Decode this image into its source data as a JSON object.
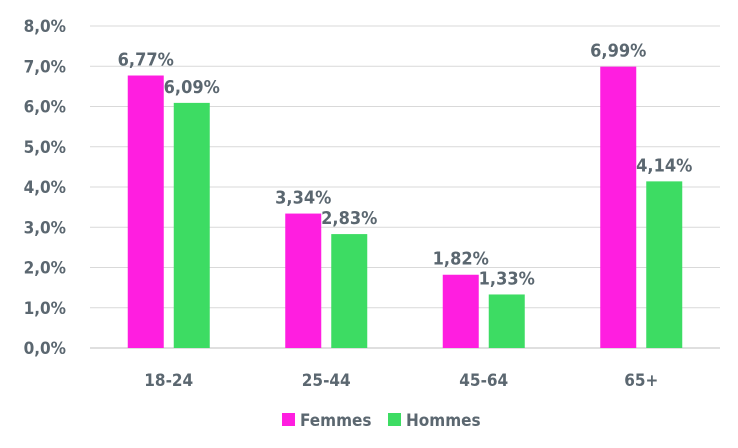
{
  "chart_data": {
    "type": "bar",
    "categories": [
      "18-24",
      "25-44",
      "45-64",
      "65+"
    ],
    "series": [
      {
        "name": "Femmes",
        "values": [
          6.77,
          3.34,
          1.82,
          6.99
        ],
        "labels": [
          "6,77%",
          "3,34%",
          "1,82%",
          "6,99%"
        ],
        "color": "#ff1ee0"
      },
      {
        "name": "Hommes",
        "values": [
          6.09,
          2.83,
          1.33,
          4.14
        ],
        "labels": [
          "6,09%",
          "2,83%",
          "1,33%",
          "4,14%"
        ],
        "color": "#3ddc63"
      }
    ],
    "ylim": [
      0,
      8
    ],
    "yticks": [
      "0,0%",
      "1,0%",
      "2,0%",
      "3,0%",
      "4,0%",
      "5,0%",
      "6,0%",
      "7,0%",
      "8,0%"
    ],
    "ytick_values": [
      0,
      1,
      2,
      3,
      4,
      5,
      6,
      7,
      8
    ],
    "grid": true,
    "legend": "bottom"
  }
}
